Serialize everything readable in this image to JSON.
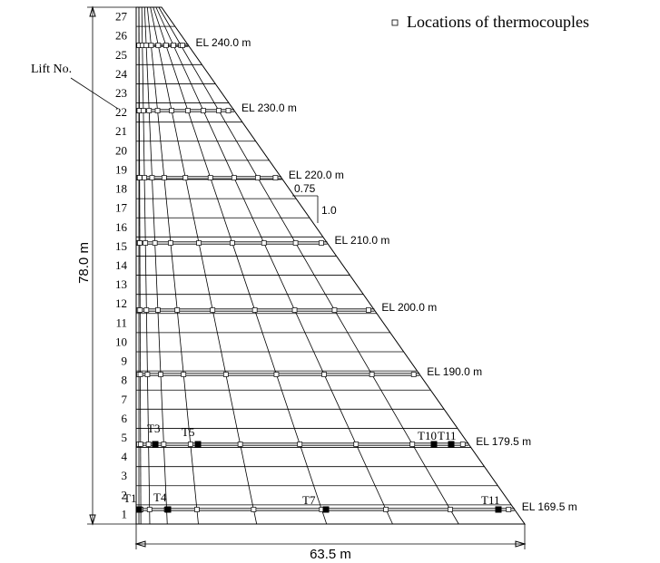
{
  "legend": "Locations of thermocouples",
  "lift_label": "Lift No.",
  "lift_numbers": [
    "1",
    "2",
    "3",
    "4",
    "5",
    "6",
    "7",
    "8",
    "9",
    "10",
    "11",
    "12",
    "13",
    "14",
    "15",
    "16",
    "17",
    "18",
    "19",
    "20",
    "21",
    "22",
    "23",
    "24",
    "25",
    "26",
    "27"
  ],
  "elevations": [
    "EL 240.0 m",
    "EL 230.0 m",
    "EL 220.0 m",
    "EL 210.0 m",
    "EL 200.0 m",
    "EL 190.0 m",
    "EL 179.5 m",
    "EL 169.5 m"
  ],
  "thermocouples": [
    "T1",
    "T3",
    "T4",
    "T5",
    "T7",
    "T10",
    "T11",
    "T11"
  ],
  "slope": {
    "horizontal": "0.75",
    "vertical": "1.0"
  },
  "dimensions": {
    "height": "78.0 m",
    "base": "63.5 m"
  }
}
